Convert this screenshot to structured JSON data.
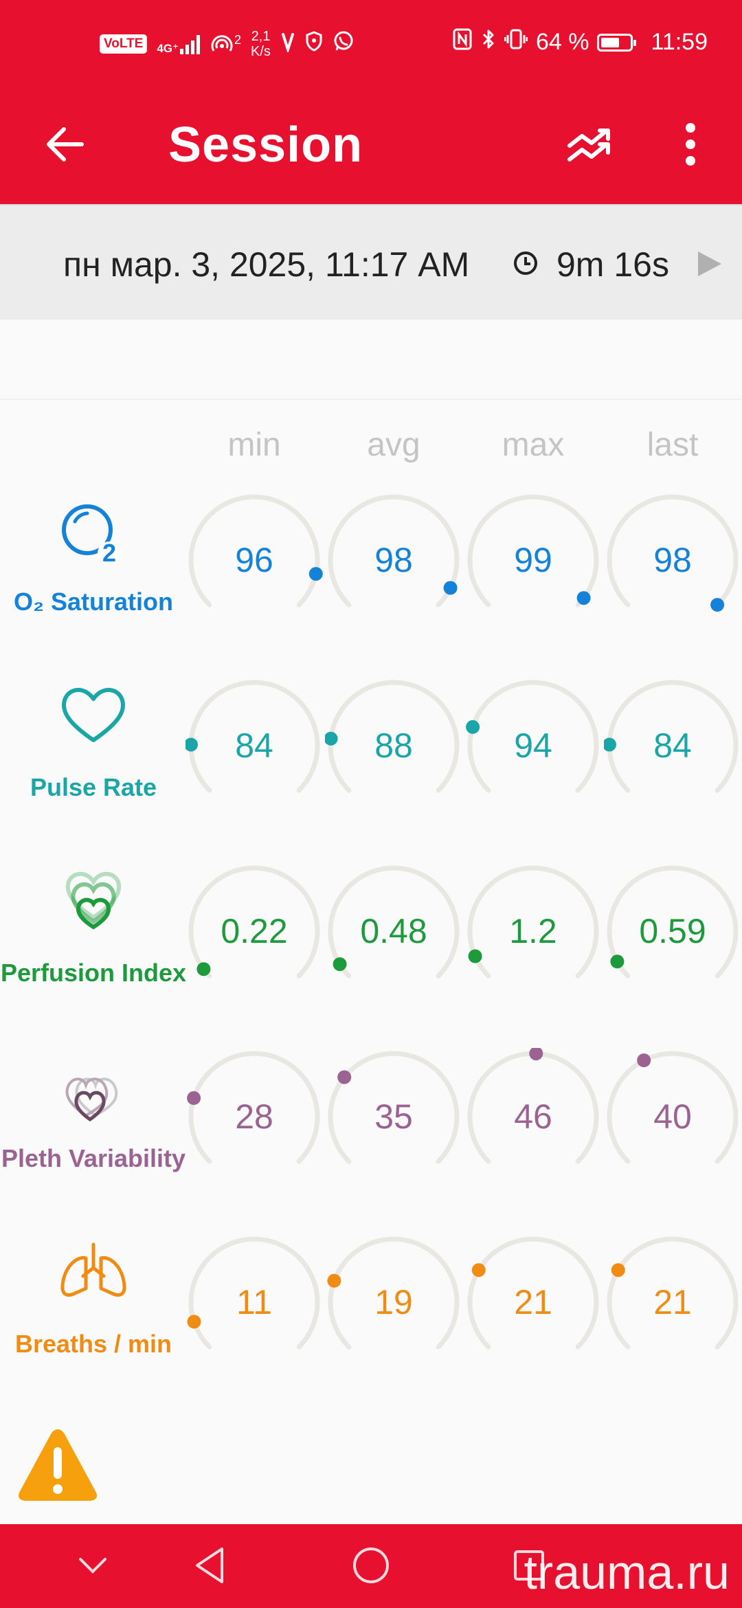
{
  "status_bar": {
    "volte": "VoLTE",
    "network": "4G⁺",
    "hotspot_count": "2",
    "net_speed_value": "2,1",
    "net_speed_unit": "K/s",
    "battery_percent": "64 %",
    "battery_level": 0.64,
    "time": "11:59"
  },
  "toolbar": {
    "title": "Session"
  },
  "session": {
    "date": "пн мар. 3, 2025, 11:17 AM",
    "duration": "9m 16s"
  },
  "columns": [
    "min",
    "avg",
    "max",
    "last"
  ],
  "metrics": [
    {
      "id": "spo2",
      "label": "O₂ Saturation",
      "color": "#1482d8",
      "icon": "o2-saturation-icon",
      "values": [
        "96",
        "98",
        "99",
        "98"
      ],
      "levels": [
        0.88,
        0.93,
        0.97,
        1.0
      ]
    },
    {
      "id": "pulse",
      "label": "Pulse Rate",
      "color": "#1aa6a8",
      "icon": "heart-icon",
      "values": [
        "84",
        "88",
        "94",
        "84"
      ],
      "levels": [
        0.17,
        0.19,
        0.23,
        0.17
      ]
    },
    {
      "id": "pi",
      "label": "Perfusion Index",
      "color": "#1d9a3b",
      "icon": "perfusion-hearts-icon",
      "values": [
        "0.22",
        "0.48",
        "1.2",
        "0.59"
      ],
      "levels": [
        0.03,
        0.05,
        0.08,
        0.06
      ]
    },
    {
      "id": "pvi",
      "label": "Pleth Variability",
      "color": "#9a6391",
      "icon": "pleth-variability-icon",
      "values": [
        "28",
        "35",
        "46",
        "40"
      ],
      "levels": [
        0.23,
        0.31,
        0.51,
        0.4
      ]
    },
    {
      "id": "rr",
      "label": "Breaths / min",
      "color": "#f08c14",
      "icon": "lungs-icon",
      "values": [
        "11",
        "19",
        "21",
        "21"
      ],
      "levels": [
        0.1,
        0.24,
        0.28,
        0.28
      ]
    }
  ],
  "watermark": "trauma.ru"
}
